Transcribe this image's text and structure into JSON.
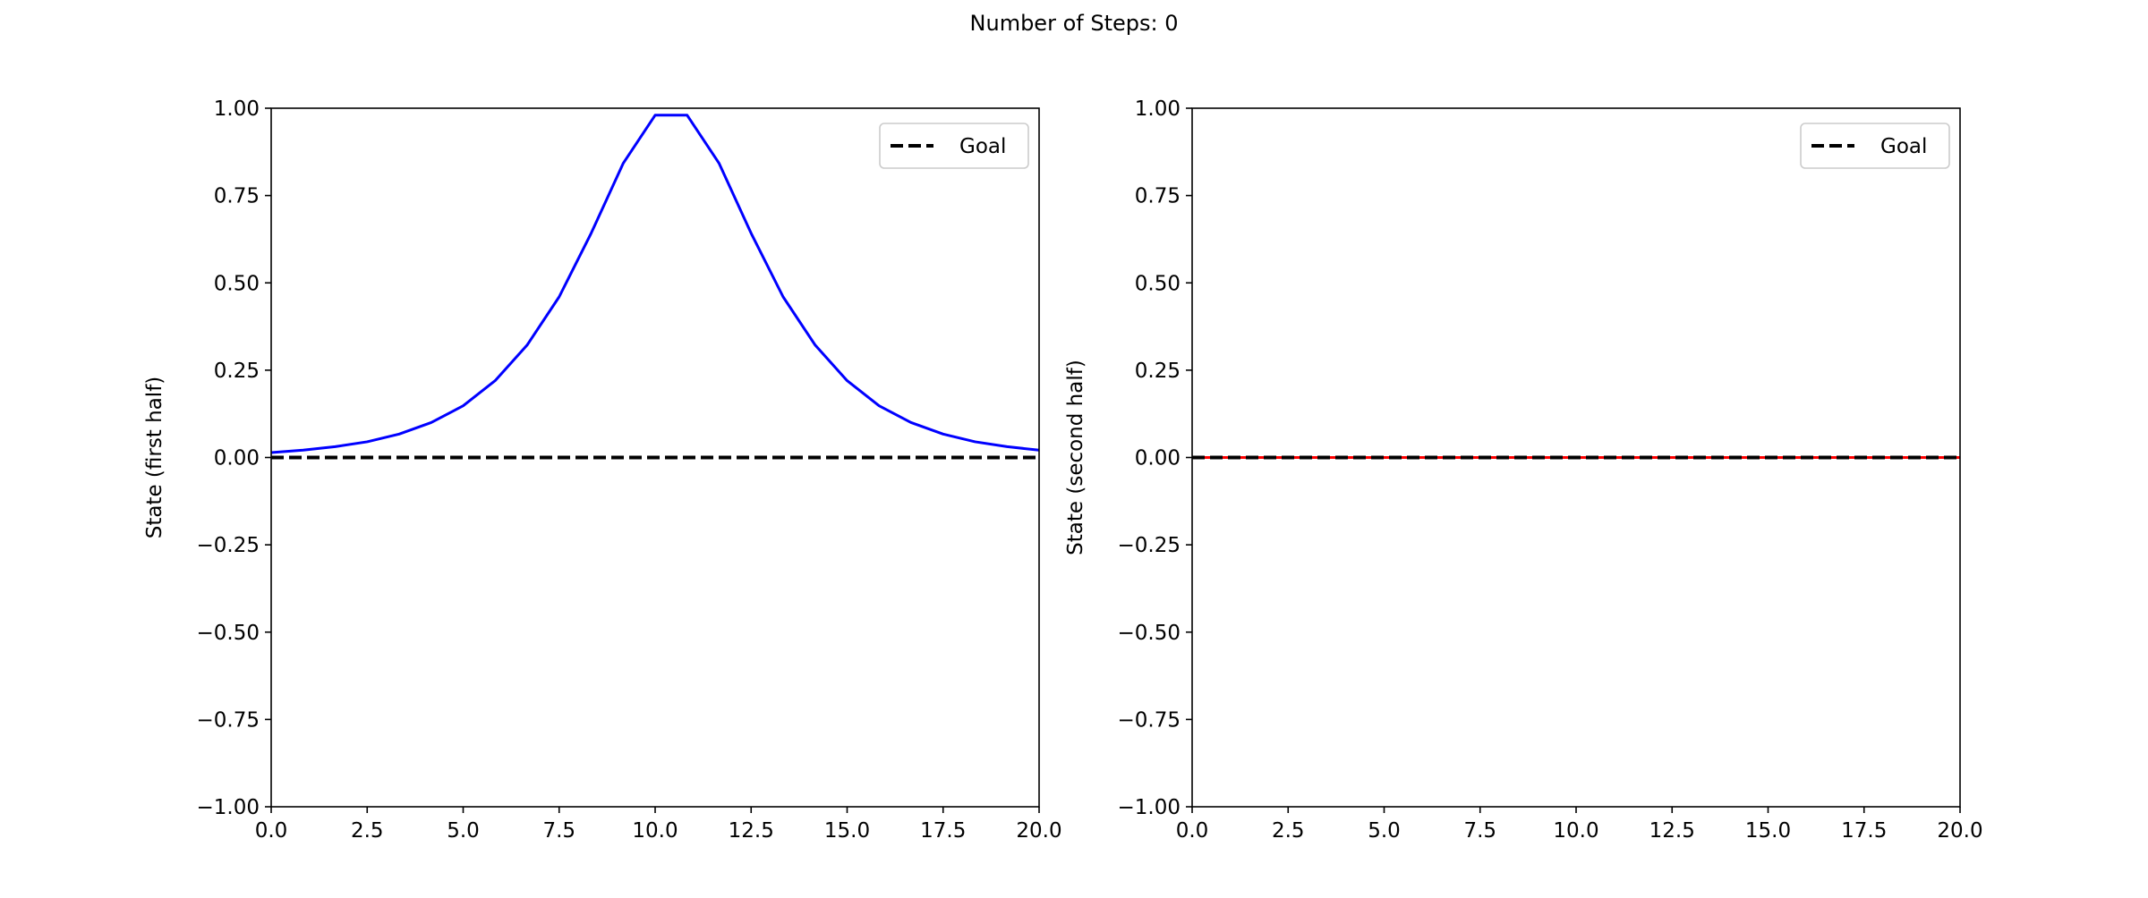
{
  "figure": {
    "suptitle": "Number of Steps: 0"
  },
  "chart_data": [
    {
      "type": "line",
      "ylabel": "State (first half)",
      "xlabel": "",
      "xlim": [
        0,
        20
      ],
      "ylim": [
        -1,
        1
      ],
      "xticks": [
        0,
        2.5,
        5,
        7.5,
        10,
        12.5,
        15,
        17.5,
        20
      ],
      "xtick_labels": [
        "0.0",
        "2.5",
        "5.0",
        "7.5",
        "10.0",
        "12.5",
        "15.0",
        "17.5",
        "20.0"
      ],
      "yticks": [
        -1,
        -0.75,
        -0.5,
        -0.25,
        0,
        0.25,
        0.5,
        0.75,
        1
      ],
      "ytick_labels": [
        "−1.00",
        "−0.75",
        "−0.50",
        "−0.25",
        "0.00",
        "0.25",
        "0.50",
        "0.75",
        "1.00"
      ],
      "grid": false,
      "legend_position": "upper right",
      "series": [
        {
          "color": "#0000ff",
          "style": "solid",
          "x": [
            0,
            0.833,
            1.667,
            2.5,
            3.333,
            4.167,
            5.0,
            5.833,
            6.667,
            7.5,
            8.333,
            9.167,
            10.0,
            10.833,
            11.667,
            12.5,
            13.333,
            14.167,
            15.0,
            15.833,
            16.667,
            17.5,
            18.333,
            19.167,
            20.0
          ],
          "y": [
            0.014,
            0.021,
            0.031,
            0.045,
            0.067,
            0.1,
            0.148,
            0.22,
            0.322,
            0.46,
            0.642,
            0.842,
            0.98,
            0.98,
            0.842,
            0.642,
            0.46,
            0.322,
            0.22,
            0.148,
            0.1,
            0.067,
            0.045,
            0.031,
            0.021
          ]
        },
        {
          "name": "Goal",
          "color": "#000000",
          "style": "dashed",
          "x": [
            0,
            20
          ],
          "y": [
            0,
            0
          ]
        }
      ]
    },
    {
      "type": "line",
      "ylabel": "State (second half)",
      "xlabel": "",
      "xlim": [
        0,
        20
      ],
      "ylim": [
        -1,
        1
      ],
      "xticks": [
        0,
        2.5,
        5,
        7.5,
        10,
        12.5,
        15,
        17.5,
        20
      ],
      "xtick_labels": [
        "0.0",
        "2.5",
        "5.0",
        "7.5",
        "10.0",
        "12.5",
        "15.0",
        "17.5",
        "20.0"
      ],
      "yticks": [
        -1,
        -0.75,
        -0.5,
        -0.25,
        0,
        0.25,
        0.5,
        0.75,
        1
      ],
      "ytick_labels": [
        "−1.00",
        "−0.75",
        "−0.50",
        "−0.25",
        "0.00",
        "0.25",
        "0.50",
        "0.75",
        "1.00"
      ],
      "grid": false,
      "legend_position": "upper right",
      "series": [
        {
          "color": "#ff0000",
          "style": "solid",
          "x": [
            0,
            20
          ],
          "y": [
            0,
            0
          ]
        },
        {
          "name": "Goal",
          "color": "#000000",
          "style": "dashed",
          "x": [
            0,
            20
          ],
          "y": [
            0,
            0
          ]
        }
      ]
    }
  ]
}
